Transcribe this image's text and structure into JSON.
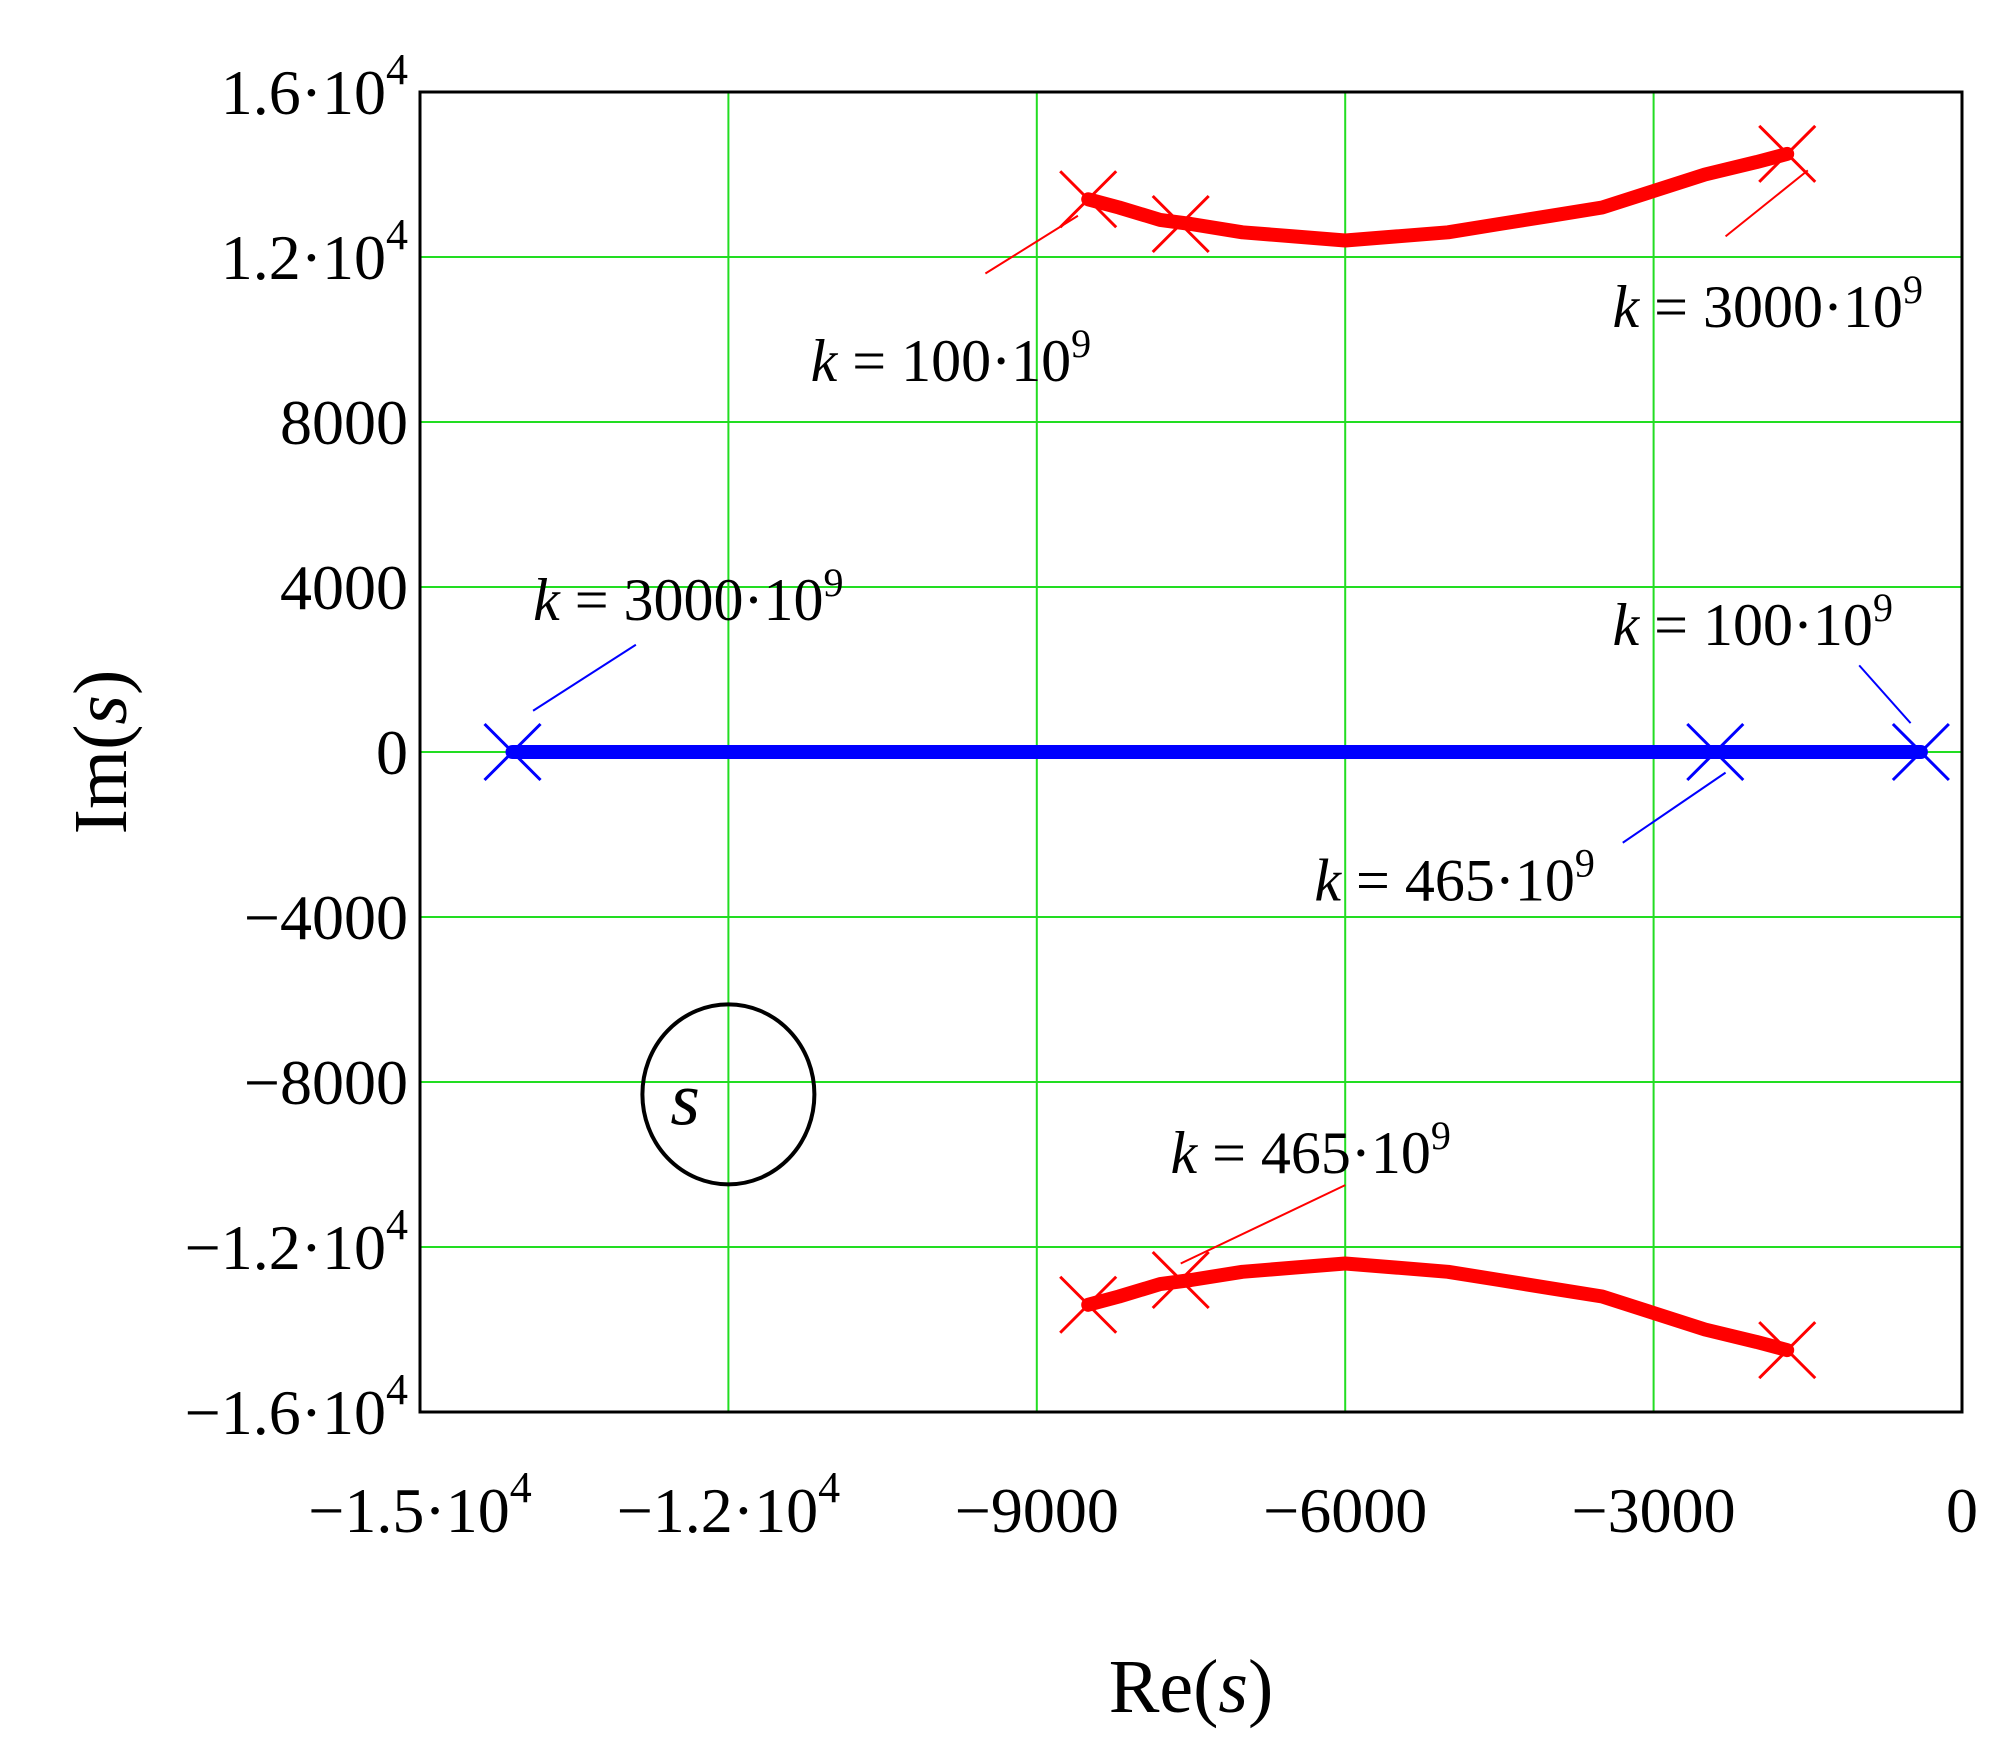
{
  "chart_data": {
    "type": "scatter",
    "title": "",
    "xlabel": {
      "prefix": "Re(",
      "var": "s",
      "suffix": ")"
    },
    "ylabel": {
      "prefix": "Im(",
      "var": "s",
      "suffix": ")"
    },
    "xlim": [
      -15000,
      0
    ],
    "ylim": [
      -16000,
      16000
    ],
    "grid": true,
    "colors": {
      "grid": "#22dd22",
      "complex_branch": "#ff0000",
      "real_branch": "#0000ff",
      "frame": "#000000"
    },
    "x_ticks": [
      {
        "value": -15000,
        "mant": "−1.5·10",
        "exp": "4"
      },
      {
        "value": -12000,
        "mant": "−1.2·10",
        "exp": "4"
      },
      {
        "value": -9000,
        "mant": "−9000",
        "exp": ""
      },
      {
        "value": -6000,
        "mant": "−6000",
        "exp": ""
      },
      {
        "value": -3000,
        "mant": "−3000",
        "exp": ""
      },
      {
        "value": 0,
        "mant": "0",
        "exp": ""
      }
    ],
    "y_ticks": [
      {
        "value": 16000,
        "mant": "1.6·10",
        "exp": "4"
      },
      {
        "value": 12000,
        "mant": "1.2·10",
        "exp": "4"
      },
      {
        "value": 8000,
        "mant": "8000",
        "exp": ""
      },
      {
        "value": 4000,
        "mant": "4000",
        "exp": ""
      },
      {
        "value": 0,
        "mant": "0",
        "exp": ""
      },
      {
        "value": -4000,
        "mant": "−4000",
        "exp": ""
      },
      {
        "value": -8000,
        "mant": "−8000",
        "exp": ""
      },
      {
        "value": -12000,
        "mant": "−1.2·10",
        "exp": "4"
      },
      {
        "value": -16000,
        "mant": "−1.6·10",
        "exp": "4"
      }
    ],
    "series": [
      {
        "color": "#ff0000",
        "x": [
          -8500,
          -8200,
          -7800,
          -7500,
          -7000,
          -6500,
          -6000,
          -5500,
          -5000,
          -4500,
          -4000,
          -3500,
          -3000,
          -2500,
          -2000,
          -1700
        ],
        "y": [
          13400,
          13200,
          12900,
          12800,
          12600,
          12500,
          12400,
          12500,
          12600,
          12800,
          13000,
          13200,
          13600,
          14000,
          14300,
          14500
        ]
      },
      {
        "color": "#ff0000",
        "x": [
          -8500,
          -8200,
          -7800,
          -7500,
          -7000,
          -6500,
          -6000,
          -5500,
          -5000,
          -4500,
          -4000,
          -3500,
          -3000,
          -2500,
          -2000,
          -1700
        ],
        "y": [
          -13400,
          -13200,
          -12900,
          -12800,
          -12600,
          -12500,
          -12400,
          -12500,
          -12600,
          -12800,
          -13000,
          -13200,
          -13600,
          -14000,
          -14300,
          -14500
        ]
      },
      {
        "color": "#0000ff",
        "x": [
          -14100,
          -400
        ],
        "y": [
          0,
          0
        ]
      }
    ],
    "markers": [
      {
        "x": -8500,
        "y": 13400,
        "color": "#ff0000"
      },
      {
        "x": -7600,
        "y": 12800,
        "color": "#ff0000"
      },
      {
        "x": -1700,
        "y": 14500,
        "color": "#ff0000"
      },
      {
        "x": -8500,
        "y": -13400,
        "color": "#ff0000"
      },
      {
        "x": -7600,
        "y": -12800,
        "color": "#ff0000"
      },
      {
        "x": -1700,
        "y": -14500,
        "color": "#ff0000"
      },
      {
        "x": -14100,
        "y": 0,
        "color": "#0000ff"
      },
      {
        "x": -2400,
        "y": 0,
        "color": "#0000ff"
      },
      {
        "x": -400,
        "y": 0,
        "color": "#0000ff"
      }
    ],
    "annotations": [
      {
        "name": "k100-upper",
        "var": "k",
        "text": " = 100·10",
        "exp": "9",
        "x": -11200,
        "y": 9000,
        "lx1": -8600,
        "ly1": 13000,
        "lx2": -9500,
        "ly2": 11600,
        "color": "#ff0000"
      },
      {
        "name": "k3000-upper",
        "var": "k",
        "text": " = 3000·10",
        "exp": "9",
        "x": -3400,
        "y": 10300,
        "lx1": -1500,
        "ly1": 14100,
        "lx2": -2300,
        "ly2": 12500,
        "color": "#ff0000"
      },
      {
        "name": "k465-lower",
        "var": "k",
        "text": " = 465·10",
        "exp": "9",
        "x": -7700,
        "y": -10200,
        "lx1": -6000,
        "ly1": -10500,
        "lx2": -7600,
        "ly2": -12400,
        "color": "#ff0000"
      },
      {
        "name": "k3000-real",
        "var": "k",
        "text": " = 3000·10",
        "exp": "9",
        "x": -13900,
        "y": 3200,
        "lx1": -12900,
        "ly1": 2600,
        "lx2": -13900,
        "ly2": 1000,
        "color": "#0000ff"
      },
      {
        "name": "k100-real",
        "var": "k",
        "text": " = 100·10",
        "exp": "9",
        "x": -3400,
        "y": 2600,
        "lx1": -1000,
        "ly1": 2100,
        "lx2": -500,
        "ly2": 700,
        "color": "#0000ff"
      },
      {
        "name": "k465-real",
        "var": "k",
        "text": " = 465·10",
        "exp": "9",
        "x": -6300,
        "y": -3600,
        "lx1": -2300,
        "ly1": -500,
        "lx2": -3300,
        "ly2": -2200,
        "color": "#0000ff"
      }
    ],
    "plane_label": {
      "text": "s",
      "x": -12000,
      "y": -8300
    }
  }
}
